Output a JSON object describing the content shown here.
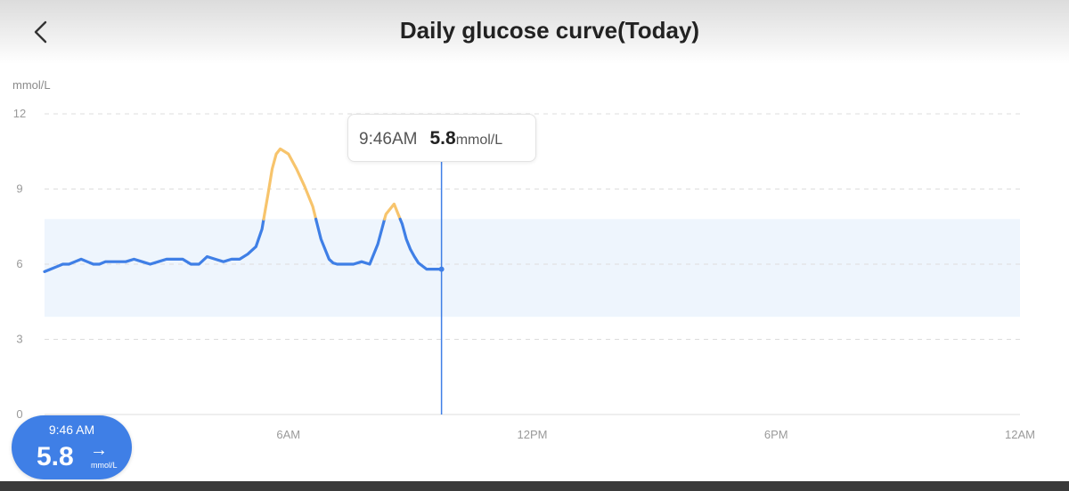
{
  "header": {
    "title": "Daily glucose curve(Today)",
    "back_icon": "chevron-left-icon"
  },
  "chart_data": {
    "type": "line",
    "title": "Daily glucose curve(Today)",
    "ylabel": "mmol/L",
    "xlabel": "",
    "ylim": [
      0,
      12
    ],
    "yticks": [
      0,
      3,
      6,
      9,
      12
    ],
    "xlim": [
      0,
      24
    ],
    "xticks": [
      {
        "value": 6,
        "label": "6AM"
      },
      {
        "value": 12,
        "label": "12PM"
      },
      {
        "value": 18,
        "label": "6PM"
      },
      {
        "value": 24,
        "label": "12AM"
      }
    ],
    "grid": true,
    "target_range": [
      3.9,
      7.8
    ],
    "series": [
      {
        "x": [
          0.0,
          0.15,
          0.3,
          0.45,
          0.6,
          0.75,
          0.9,
          1.05,
          1.2,
          1.35,
          1.5,
          1.65,
          1.8,
          2.0,
          2.2,
          2.4,
          2.6,
          2.8,
          3.0,
          3.2,
          3.4,
          3.6,
          3.8,
          4.0,
          4.2,
          4.4,
          4.6,
          4.8,
          5.0,
          5.2,
          5.35,
          5.5,
          5.6,
          5.7,
          5.8,
          6.0,
          6.2,
          6.4,
          6.6,
          6.8,
          7.0,
          7.1,
          7.2,
          7.4,
          7.6,
          7.8,
          8.0,
          8.2,
          8.4,
          8.6,
          8.8,
          8.9,
          9.0,
          9.1,
          9.2,
          9.4,
          9.55,
          9.7,
          9.767
        ],
        "y": [
          5.7,
          5.8,
          5.9,
          6.0,
          6.0,
          6.1,
          6.2,
          6.1,
          6.0,
          6.0,
          6.1,
          6.1,
          6.1,
          6.1,
          6.2,
          6.1,
          6.0,
          6.1,
          6.2,
          6.2,
          6.2,
          6.0,
          6.0,
          6.3,
          6.2,
          6.1,
          6.2,
          6.2,
          6.4,
          6.7,
          7.4,
          8.8,
          9.8,
          10.4,
          10.6,
          10.4,
          9.8,
          9.1,
          8.3,
          7.0,
          6.2,
          6.05,
          6.0,
          6.0,
          6.0,
          6.1,
          6.0,
          6.8,
          8.0,
          8.4,
          7.6,
          7.0,
          6.6,
          6.3,
          6.05,
          5.8,
          5.8,
          5.8,
          5.8
        ]
      }
    ],
    "colors": {
      "in_range": "#3f7fe6",
      "above_range": "#f7c46c",
      "range_band": "#eef5fd",
      "grid": "#dddddd",
      "cursor": "#3f7fe6"
    }
  },
  "tooltip": {
    "time": "9:46AM",
    "value": "5.8",
    "unit": "mmol/L",
    "cursor_x": 9.767,
    "cursor_y": 5.8
  },
  "current_reading": {
    "time": "9:46 AM",
    "value": "5.8",
    "trend": "→",
    "trend_icon": "arrow-right-icon",
    "unit": "mmol/L"
  }
}
